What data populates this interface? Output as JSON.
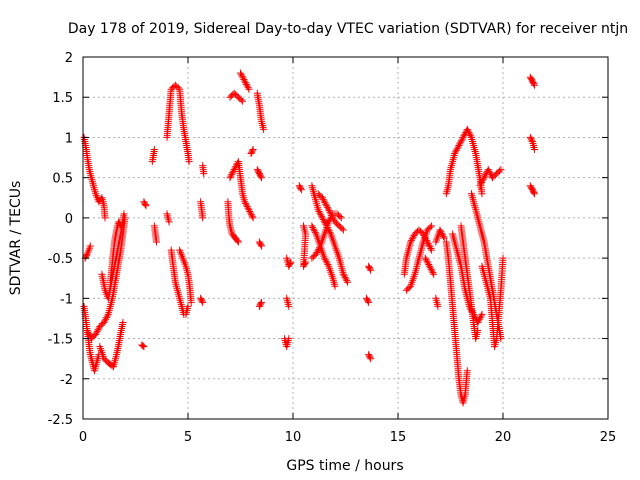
{
  "chart_data": {
    "type": "scatter",
    "title": "Day 178 of 2019, Sidereal Day-to-day VTEC variation (SDTVAR) for receiver ntjn",
    "xlabel": "GPS time / hours",
    "ylabel": "SDTVAR / TECUs",
    "xlim": [
      0,
      25
    ],
    "ylim": [
      -2.5,
      2
    ],
    "xticks": [
      "0",
      "5",
      "10",
      "15",
      "20",
      "25"
    ],
    "yticks": [
      "-2.5",
      "-2",
      "-1.5",
      "-1",
      "-0.5",
      "0",
      "0.5",
      "1",
      "1.5",
      "2"
    ],
    "grid": true,
    "marker": "+",
    "colors": {
      "series": "#ff0000"
    },
    "tracks": [
      [
        [
          0.05,
          1.0
        ],
        [
          0.15,
          0.85
        ],
        [
          0.3,
          0.6
        ],
        [
          0.45,
          0.45
        ],
        [
          0.6,
          0.3
        ],
        [
          0.75,
          0.2
        ],
        [
          0.9,
          0.25
        ],
        [
          1.0,
          0.15
        ],
        [
          1.05,
          0.0
        ]
      ],
      [
        [
          0.1,
          -0.5
        ],
        [
          0.2,
          -0.45
        ],
        [
          0.35,
          -0.35
        ]
      ],
      [
        [
          0.05,
          -1.1
        ],
        [
          0.15,
          -1.3
        ],
        [
          0.25,
          -1.5
        ],
        [
          0.35,
          -1.7
        ],
        [
          0.45,
          -1.8
        ],
        [
          0.55,
          -1.9
        ],
        [
          0.65,
          -1.8
        ],
        [
          0.75,
          -1.7
        ]
      ],
      [
        [
          0.2,
          -1.4
        ],
        [
          0.4,
          -1.5
        ],
        [
          0.6,
          -1.45
        ],
        [
          0.8,
          -1.35
        ],
        [
          1.0,
          -1.3
        ],
        [
          1.2,
          -1.2
        ],
        [
          1.4,
          -1.0
        ],
        [
          1.6,
          -0.7
        ],
        [
          1.8,
          -0.4
        ],
        [
          1.9,
          -0.2
        ],
        [
          2.0,
          0.0
        ]
      ],
      [
        [
          0.8,
          -1.6
        ],
        [
          1.0,
          -1.75
        ],
        [
          1.2,
          -1.8
        ],
        [
          1.45,
          -1.85
        ],
        [
          1.6,
          -1.7
        ],
        [
          1.75,
          -1.5
        ],
        [
          1.9,
          -1.3
        ]
      ],
      [
        [
          0.9,
          -0.7
        ],
        [
          1.05,
          -0.9
        ],
        [
          1.2,
          -1.0
        ],
        [
          1.35,
          -0.8
        ],
        [
          1.5,
          -0.6
        ],
        [
          1.65,
          -0.4
        ],
        [
          1.8,
          -0.2
        ],
        [
          1.95,
          0.05
        ]
      ],
      [
        [
          1.3,
          -0.8
        ],
        [
          1.4,
          -0.55
        ],
        [
          1.5,
          -0.3
        ],
        [
          1.6,
          -0.15
        ],
        [
          1.7,
          -0.05
        ],
        [
          1.8,
          -0.1
        ]
      ],
      [
        [
          3.3,
          0.7
        ],
        [
          3.4,
          0.85
        ]
      ],
      [
        [
          3.4,
          -0.1
        ],
        [
          3.45,
          -0.2
        ],
        [
          3.5,
          -0.3
        ]
      ],
      [
        [
          4.0,
          1.0
        ],
        [
          4.1,
          1.3
        ],
        [
          4.2,
          1.6
        ],
        [
          4.4,
          1.65
        ],
        [
          4.6,
          1.6
        ],
        [
          4.7,
          1.3
        ],
        [
          4.8,
          1.1
        ],
        [
          4.9,
          0.95
        ],
        [
          5.0,
          0.8
        ],
        [
          5.05,
          0.7
        ]
      ],
      [
        [
          4.0,
          0.05
        ],
        [
          4.1,
          -0.05
        ]
      ],
      [
        [
          4.2,
          -0.4
        ],
        [
          4.3,
          -0.6
        ],
        [
          4.4,
          -0.8
        ],
        [
          4.5,
          -0.9
        ],
        [
          4.6,
          -1.0
        ],
        [
          4.7,
          -1.1
        ],
        [
          4.8,
          -1.2
        ],
        [
          4.9,
          -1.2
        ],
        [
          5.0,
          -1.1
        ]
      ],
      [
        [
          4.6,
          -0.4
        ],
        [
          4.75,
          -0.5
        ],
        [
          4.9,
          -0.6
        ],
        [
          5.0,
          -0.7
        ],
        [
          5.1,
          -0.9
        ],
        [
          5.15,
          -1.05
        ]
      ],
      [
        [
          5.7,
          0.65
        ],
        [
          5.75,
          0.55
        ]
      ],
      [
        [
          5.6,
          0.2
        ],
        [
          5.65,
          0.1
        ],
        [
          5.7,
          0.0
        ]
      ],
      [
        [
          5.6,
          -1.0
        ],
        [
          5.7,
          -1.05
        ]
      ],
      [
        [
          2.9,
          0.2
        ],
        [
          3.0,
          0.15
        ]
      ],
      [
        [
          2.8,
          -1.58
        ],
        [
          2.9,
          -1.6
        ]
      ],
      [
        [
          7.0,
          1.5
        ],
        [
          7.2,
          1.55
        ],
        [
          7.4,
          1.5
        ],
        [
          7.6,
          1.45
        ]
      ],
      [
        [
          7.5,
          1.8
        ],
        [
          7.7,
          1.7
        ],
        [
          7.9,
          1.6
        ]
      ],
      [
        [
          7.0,
          0.5
        ],
        [
          7.2,
          0.6
        ],
        [
          7.4,
          0.7
        ],
        [
          7.5,
          0.5
        ],
        [
          7.6,
          0.3
        ],
        [
          7.7,
          0.2
        ],
        [
          7.9,
          0.1
        ],
        [
          8.1,
          0.0
        ]
      ],
      [
        [
          6.9,
          0.2
        ],
        [
          6.95,
          0.0
        ],
        [
          7.0,
          -0.1
        ],
        [
          7.1,
          -0.2
        ],
        [
          7.25,
          -0.25
        ],
        [
          7.4,
          -0.3
        ]
      ],
      [
        [
          8.3,
          1.55
        ],
        [
          8.4,
          1.4
        ],
        [
          8.5,
          1.2
        ],
        [
          8.6,
          1.1
        ]
      ],
      [
        [
          8.0,
          0.8
        ],
        [
          8.1,
          0.85
        ]
      ],
      [
        [
          8.3,
          0.6
        ],
        [
          8.4,
          0.55
        ],
        [
          8.5,
          0.5
        ]
      ],
      [
        [
          8.4,
          -0.3
        ],
        [
          8.5,
          -0.35
        ]
      ],
      [
        [
          8.4,
          -1.1
        ],
        [
          8.5,
          -1.05
        ]
      ],
      [
        [
          9.7,
          -0.5
        ],
        [
          9.8,
          -0.6
        ],
        [
          9.9,
          -0.55
        ]
      ],
      [
        [
          9.7,
          -1.0
        ],
        [
          9.8,
          -1.1
        ]
      ],
      [
        [
          9.6,
          -1.5
        ],
        [
          9.7,
          -1.6
        ],
        [
          9.8,
          -1.5
        ]
      ],
      [
        [
          10.3,
          0.4
        ],
        [
          10.4,
          0.35
        ]
      ],
      [
        [
          10.5,
          -0.1
        ],
        [
          10.6,
          -0.2
        ],
        [
          10.5,
          -0.6
        ],
        [
          10.6,
          -0.55
        ]
      ],
      [
        [
          10.9,
          0.4
        ],
        [
          11.0,
          0.3
        ],
        [
          11.1,
          0.2
        ],
        [
          11.2,
          0.1
        ],
        [
          11.4,
          0.0
        ],
        [
          11.6,
          -0.1
        ],
        [
          11.8,
          -0.2
        ],
        [
          12.0,
          -0.35
        ],
        [
          12.2,
          -0.5
        ],
        [
          12.4,
          -0.7
        ],
        [
          12.6,
          -0.8
        ]
      ],
      [
        [
          10.9,
          -0.1
        ],
        [
          11.1,
          -0.2
        ],
        [
          11.3,
          -0.35
        ],
        [
          11.5,
          -0.5
        ],
        [
          11.7,
          -0.6
        ],
        [
          11.9,
          -0.75
        ],
        [
          12.0,
          -0.85
        ]
      ],
      [
        [
          10.9,
          -0.5
        ],
        [
          11.1,
          -0.45
        ],
        [
          11.3,
          -0.35
        ],
        [
          11.5,
          -0.2
        ],
        [
          11.7,
          -0.05
        ],
        [
          11.9,
          0.05
        ],
        [
          12.1,
          0.05
        ],
        [
          12.3,
          0.0
        ]
      ],
      [
        [
          11.2,
          0.3
        ],
        [
          11.4,
          0.25
        ],
        [
          11.6,
          0.15
        ],
        [
          11.8,
          0.05
        ],
        [
          12.0,
          -0.05
        ],
        [
          12.2,
          -0.1
        ],
        [
          12.4,
          -0.15
        ]
      ],
      [
        [
          13.6,
          -0.6
        ],
        [
          13.7,
          -0.65
        ]
      ],
      [
        [
          13.5,
          -1.0
        ],
        [
          13.6,
          -1.05
        ]
      ],
      [
        [
          13.6,
          -1.7
        ],
        [
          13.7,
          -1.75
        ]
      ],
      [
        [
          15.3,
          -0.7
        ],
        [
          15.4,
          -0.5
        ],
        [
          15.6,
          -0.3
        ],
        [
          15.8,
          -0.2
        ],
        [
          16.0,
          -0.15
        ],
        [
          16.2,
          -0.2
        ],
        [
          16.4,
          -0.3
        ],
        [
          16.6,
          -0.4
        ]
      ],
      [
        [
          15.4,
          -0.9
        ],
        [
          15.6,
          -0.85
        ],
        [
          15.8,
          -0.7
        ],
        [
          16.0,
          -0.5
        ],
        [
          16.2,
          -0.3
        ],
        [
          16.4,
          -0.15
        ],
        [
          16.6,
          -0.1
        ]
      ],
      [
        [
          16.3,
          -0.5
        ],
        [
          16.5,
          -0.6
        ],
        [
          16.7,
          -0.7
        ]
      ],
      [
        [
          16.8,
          -0.3
        ],
        [
          17.0,
          -0.15
        ],
        [
          17.2,
          -0.25
        ]
      ],
      [
        [
          16.8,
          -1.0
        ],
        [
          16.9,
          -1.1
        ]
      ],
      [
        [
          17.3,
          0.3
        ],
        [
          17.4,
          0.4
        ],
        [
          17.5,
          0.6
        ],
        [
          17.7,
          0.8
        ],
        [
          17.9,
          0.9
        ],
        [
          18.1,
          1.0
        ],
        [
          18.3,
          1.1
        ],
        [
          18.5,
          1.0
        ],
        [
          18.7,
          0.8
        ],
        [
          18.9,
          0.5
        ],
        [
          19.0,
          0.3
        ]
      ],
      [
        [
          17.3,
          -0.3
        ],
        [
          17.4,
          -0.5
        ],
        [
          17.5,
          -0.8
        ],
        [
          17.6,
          -1.1
        ],
        [
          17.7,
          -1.4
        ],
        [
          17.8,
          -1.7
        ],
        [
          17.9,
          -2.0
        ],
        [
          18.0,
          -2.2
        ],
        [
          18.1,
          -2.3
        ],
        [
          18.2,
          -2.2
        ],
        [
          18.3,
          -1.9
        ]
      ],
      [
        [
          17.6,
          -0.2
        ],
        [
          17.8,
          -0.4
        ],
        [
          18.0,
          -0.6
        ],
        [
          18.2,
          -0.9
        ],
        [
          18.4,
          -1.1
        ],
        [
          18.6,
          -1.2
        ],
        [
          18.8,
          -1.3
        ],
        [
          19.0,
          -1.2
        ]
      ],
      [
        [
          18.0,
          -0.1
        ],
        [
          18.1,
          -0.3
        ],
        [
          18.2,
          -0.5
        ],
        [
          18.3,
          -0.7
        ],
        [
          18.4,
          -0.9
        ],
        [
          18.5,
          -1.1
        ],
        [
          18.6,
          -1.3
        ],
        [
          18.7,
          -1.5
        ],
        [
          18.8,
          -1.4
        ]
      ],
      [
        [
          18.5,
          0.3
        ],
        [
          18.7,
          0.1
        ],
        [
          18.9,
          -0.1
        ],
        [
          19.1,
          -0.3
        ],
        [
          19.3,
          -0.6
        ],
        [
          19.5,
          -0.9
        ],
        [
          19.7,
          -1.2
        ],
        [
          19.9,
          -1.5
        ]
      ],
      [
        [
          18.9,
          0.4
        ],
        [
          19.1,
          0.5
        ],
        [
          19.3,
          0.6
        ],
        [
          19.5,
          0.5
        ],
        [
          19.7,
          0.55
        ],
        [
          19.9,
          0.6
        ]
      ],
      [
        [
          19.0,
          -0.6
        ],
        [
          19.2,
          -0.8
        ],
        [
          19.4,
          -1.0
        ],
        [
          19.5,
          -1.3
        ],
        [
          19.6,
          -1.6
        ],
        [
          19.7,
          -1.5
        ],
        [
          19.8,
          -1.2
        ],
        [
          19.9,
          -0.9
        ],
        [
          20.0,
          -0.5
        ]
      ],
      [
        [
          21.3,
          1.75
        ],
        [
          21.4,
          1.7
        ],
        [
          21.5,
          1.65
        ]
      ],
      [
        [
          21.3,
          1.0
        ],
        [
          21.4,
          0.95
        ],
        [
          21.5,
          0.85
        ]
      ],
      [
        [
          21.3,
          0.4
        ],
        [
          21.4,
          0.35
        ],
        [
          21.5,
          0.3
        ]
      ]
    ]
  }
}
